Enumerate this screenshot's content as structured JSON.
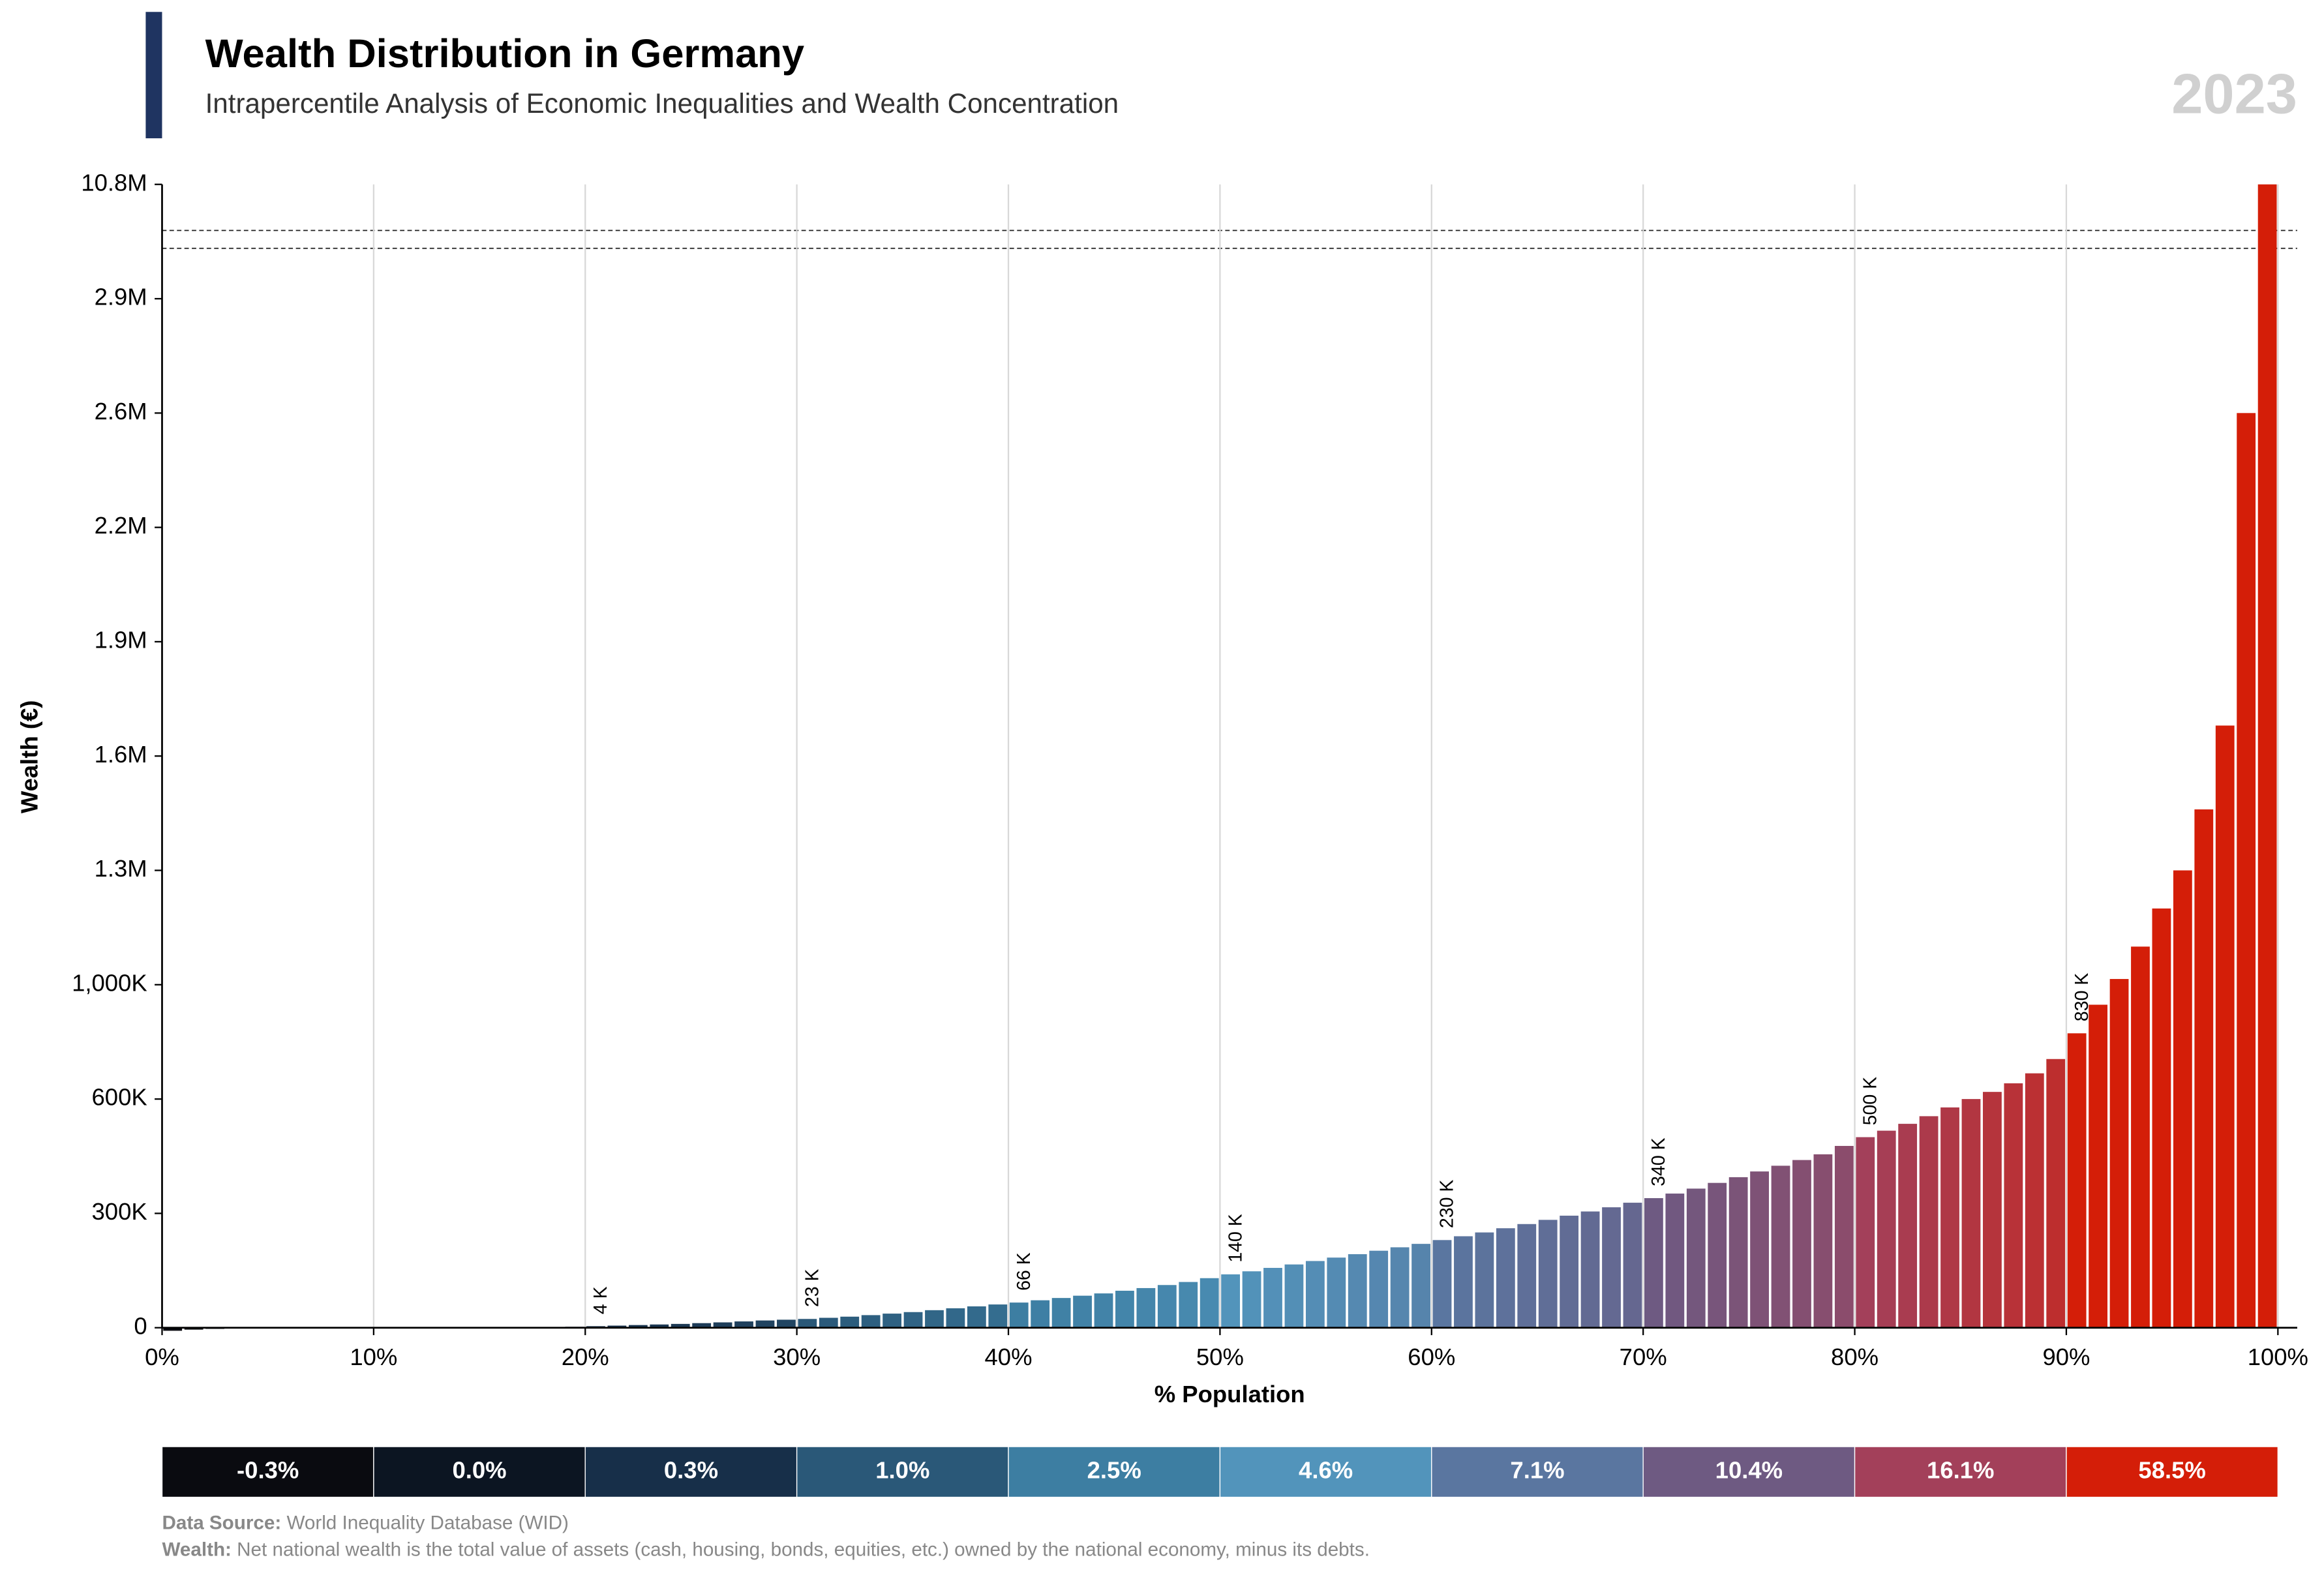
{
  "chart_data": {
    "type": "bar",
    "title": "Wealth Distribution in Germany",
    "subtitle": "Intrapercentile Analysis of Economic Inequalities and Wealth Concentration",
    "year": "2023",
    "xlabel": "% Population",
    "ylabel": "Wealth (€)",
    "xlim": [
      0,
      100
    ],
    "xticks": [
      {
        "value": 0,
        "label": "0%"
      },
      {
        "value": 10,
        "label": "10%"
      },
      {
        "value": 20,
        "label": "20%"
      },
      {
        "value": 30,
        "label": "30%"
      },
      {
        "value": 40,
        "label": "40%"
      },
      {
        "value": 50,
        "label": "50%"
      },
      {
        "value": 60,
        "label": "60%"
      },
      {
        "value": 70,
        "label": "70%"
      },
      {
        "value": 80,
        "label": "80%"
      },
      {
        "value": 90,
        "label": "90%"
      },
      {
        "value": 100,
        "label": "100%"
      }
    ],
    "ylim": [
      0,
      10800000
    ],
    "yticks": [
      0,
      {
        "value": 300000,
        "label": "300K"
      },
      {
        "value": 600000,
        "label": "600K"
      },
      {
        "value": 1000000,
        "label": "1,000K"
      },
      {
        "value": 1300000,
        "label": "1.3M"
      },
      {
        "value": 1600000,
        "label": "1.6M"
      },
      {
        "value": 1900000,
        "label": "1.9M"
      },
      {
        "value": 2200000,
        "label": "2.2M"
      },
      {
        "value": 2600000,
        "label": "2.6M"
      },
      {
        "value": 2900000,
        "label": "2.9M"
      },
      {
        "value": 10800000,
        "label": "10.8M"
      }
    ],
    "grid": true,
    "values": [
      -8000,
      -5000,
      -3000,
      -2000,
      -1500,
      -1000,
      -700,
      -400,
      -200,
      -100,
      0,
      0,
      100,
      200,
      300,
      500,
      700,
      1000,
      1500,
      2500,
      4000,
      5500,
      7000,
      8500,
      10000,
      12000,
      14000,
      16500,
      19000,
      21000,
      23000,
      26000,
      29000,
      33000,
      37000,
      41000,
      46000,
      51000,
      56000,
      61000,
      66000,
      72000,
      78000,
      84000,
      90000,
      97000,
      104000,
      112000,
      120000,
      130000,
      140000,
      148000,
      157000,
      166000,
      175000,
      184000,
      193000,
      202000,
      211000,
      220000,
      230000,
      240000,
      250000,
      261000,
      272000,
      283000,
      294000,
      305000,
      316000,
      328000,
      340000,
      352000,
      365000,
      380000,
      395000,
      410000,
      425000,
      440000,
      455000,
      477000,
      500000,
      517000,
      535000,
      555000,
      578000,
      600000,
      625000,
      655000,
      690000,
      740000,
      830000,
      930000,
      1015000,
      1100000,
      1200000,
      1300000,
      1460000,
      1680000,
      2600000,
      10800000
    ],
    "value_labels": [
      null,
      null,
      null,
      null,
      null,
      null,
      null,
      null,
      null,
      null,
      null,
      null,
      null,
      null,
      null,
      null,
      null,
      null,
      null,
      null,
      "4 K",
      null,
      null,
      null,
      null,
      null,
      null,
      null,
      null,
      null,
      "23 K",
      null,
      null,
      null,
      null,
      null,
      null,
      null,
      null,
      null,
      "66 K",
      null,
      null,
      null,
      null,
      null,
      null,
      null,
      null,
      null,
      "140 K",
      null,
      null,
      null,
      null,
      null,
      null,
      null,
      null,
      null,
      "230 K",
      null,
      null,
      null,
      null,
      null,
      null,
      null,
      null,
      null,
      "340 K",
      null,
      null,
      null,
      null,
      null,
      null,
      null,
      null,
      null,
      "500 K",
      null,
      null,
      null,
      null,
      null,
      null,
      null,
      null,
      null,
      "830 K",
      null,
      null,
      null,
      null,
      null,
      null,
      null,
      null,
      null
    ],
    "shares": {
      "values": [
        -0.3,
        0.0,
        0.3,
        1.0,
        2.5,
        4.6,
        7.1,
        10.4,
        16.1,
        58.5
      ],
      "value_labels": [
        "-0.3%",
        "0.0%",
        "0.3%",
        "1.0%",
        "2.5%",
        "4.6%",
        "7.1%",
        "10.4%",
        "16.1%",
        "58.5%"
      ],
      "colors": [
        "#0a0b10",
        "#0c1522",
        "#172f49",
        "#2a5878",
        "#3d7ea2",
        "#5294bb",
        "#5a76a0",
        "#6e5a82",
        "#a3405a",
        "#d41e08"
      ]
    },
    "footer": {
      "source_label": "Data Source:",
      "source": "World Inequality Database (WID)",
      "note_label": "Wealth:",
      "note": "Net national wealth is the total value of assets (cash, housing, bonds, equities, etc.) owned by the national economy, minus its debts."
    }
  }
}
